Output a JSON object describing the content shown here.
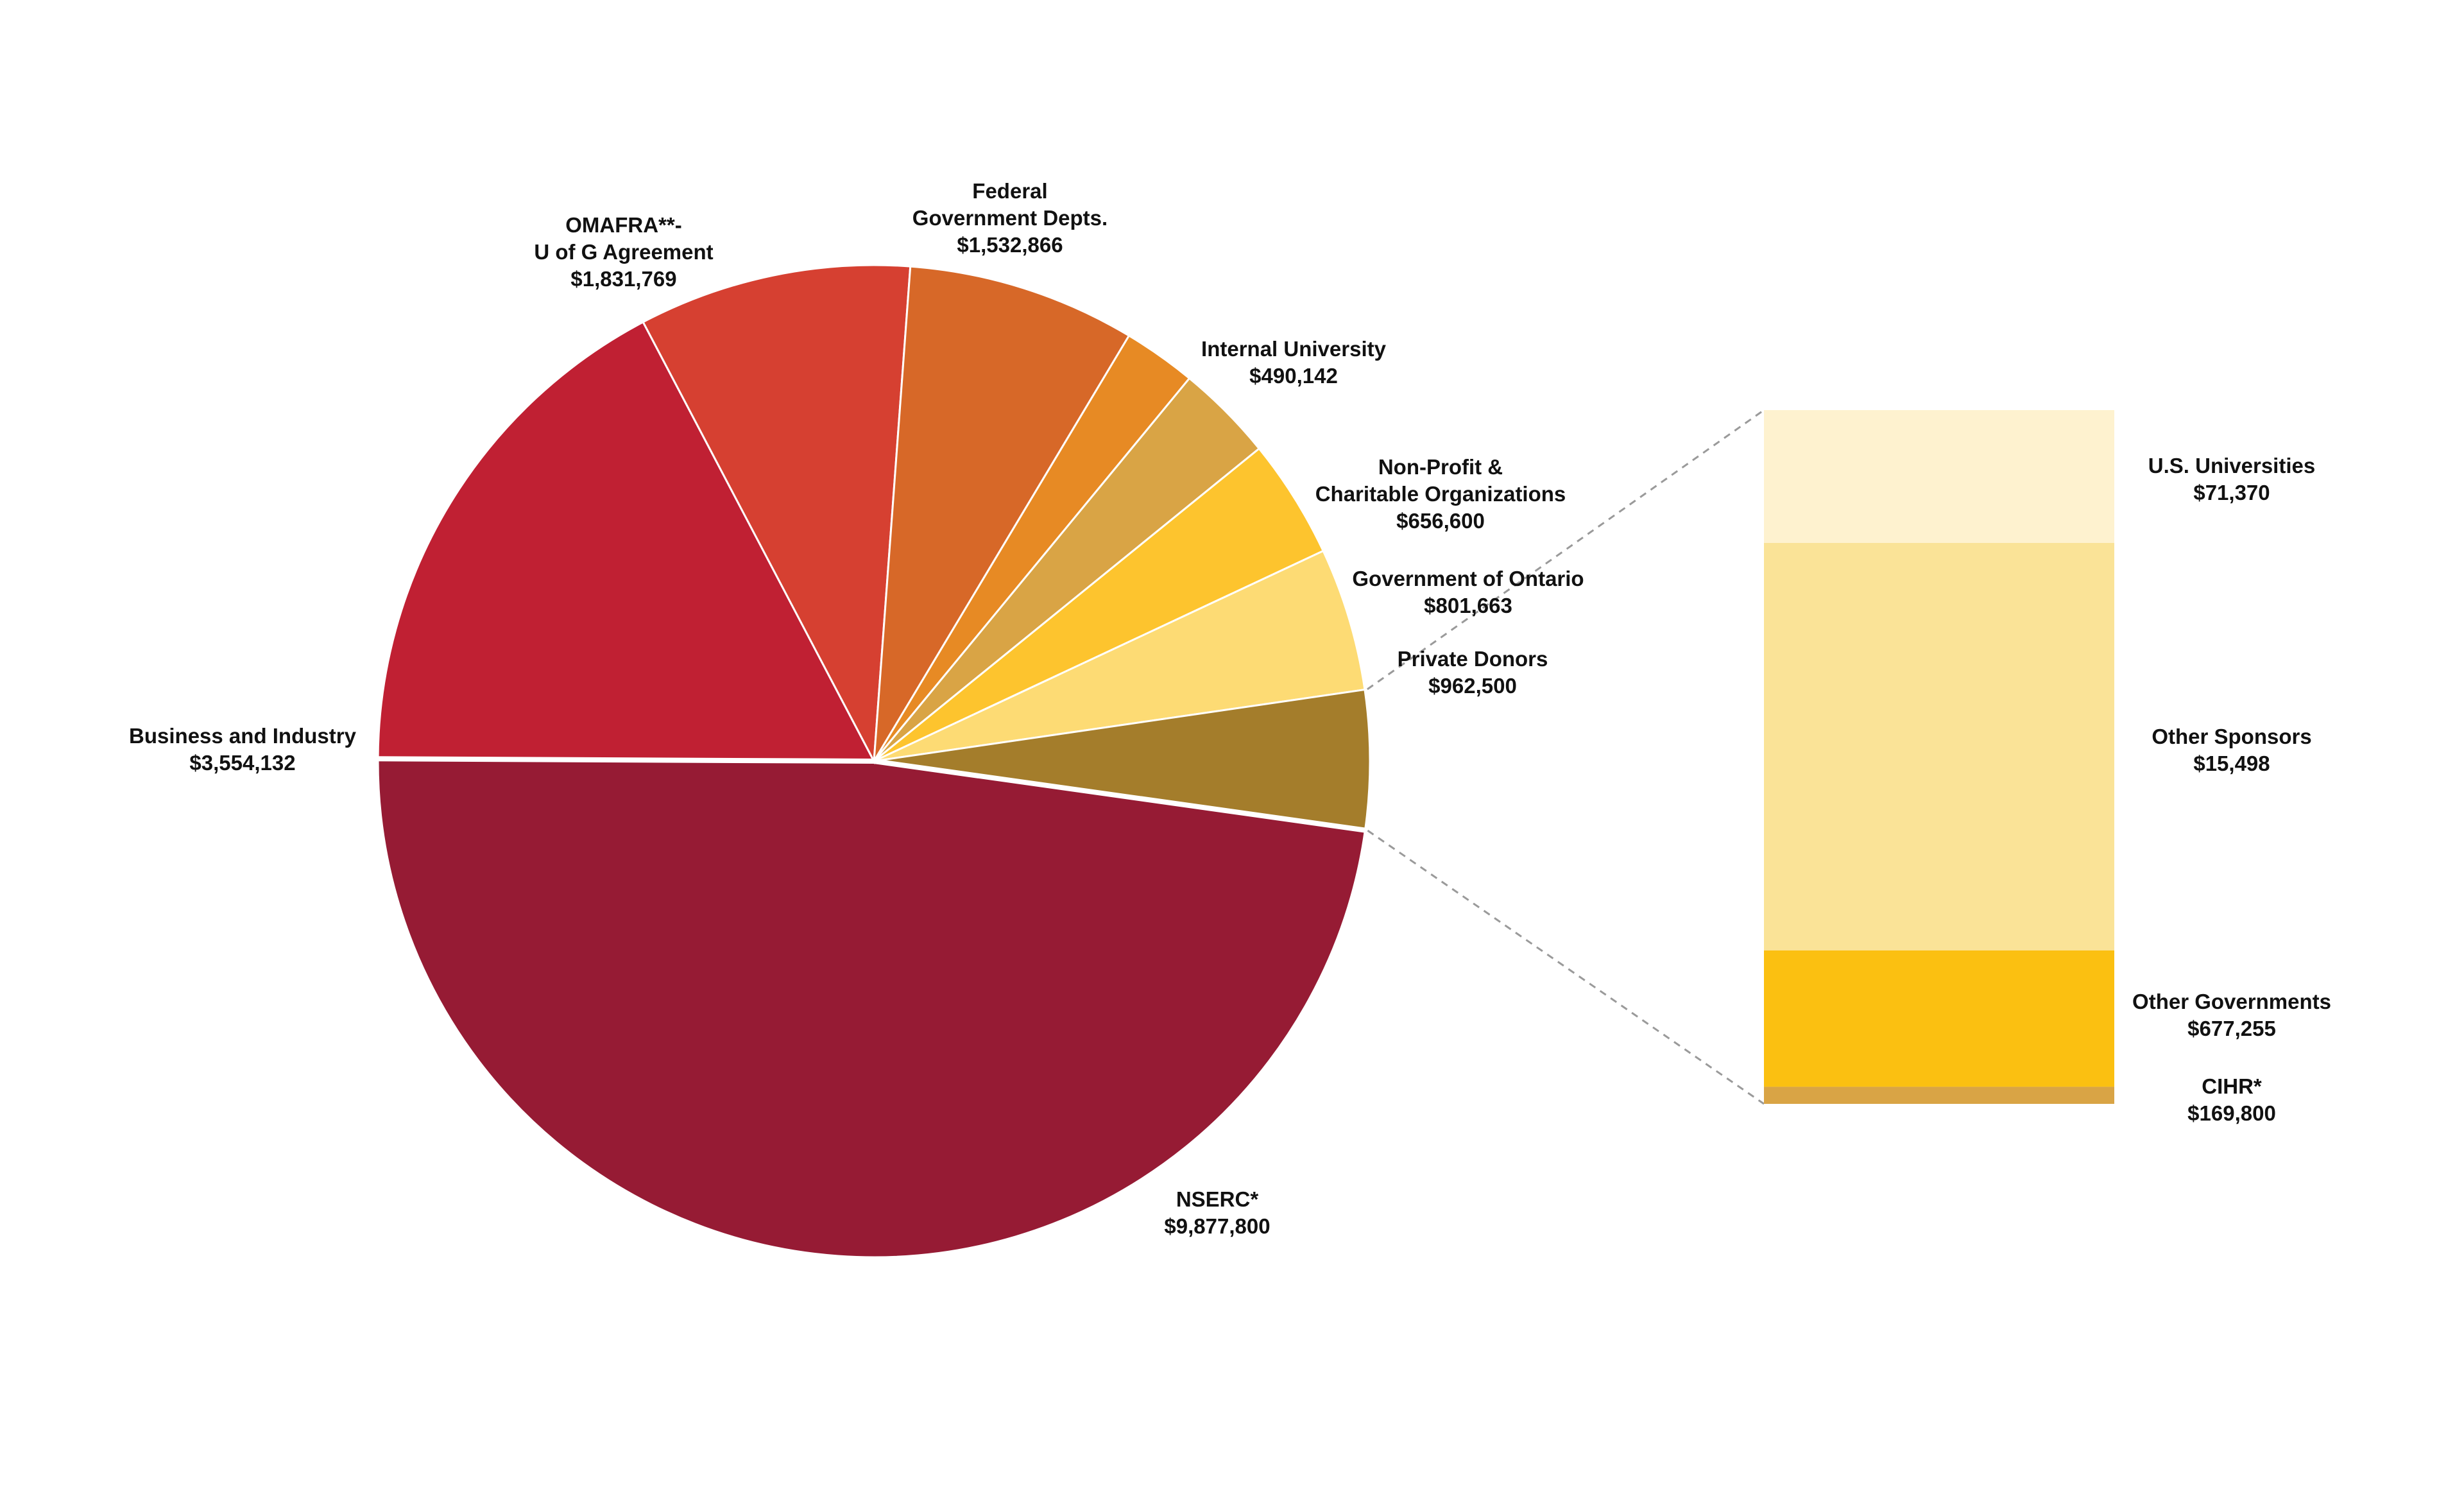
{
  "chart_data": {
    "type": "pie",
    "slices": [
      {
        "label_lines": [
          "NSERC*"
        ],
        "value_text": "$9,877,800",
        "value": 9877800,
        "color": "#961b34"
      },
      {
        "label_lines": [
          "Business and Industry"
        ],
        "value_text": "$3,554,132",
        "value": 3554132,
        "color": "#c02033"
      },
      {
        "label_lines": [
          "OMAFRA**-",
          "U of G Agreement"
        ],
        "value_text": "$1,831,769",
        "value": 1831769,
        "color": "#d64031"
      },
      {
        "label_lines": [
          "Federal",
          "Government Depts."
        ],
        "value_text": "$1,532,866",
        "value": 1532866,
        "color": "#d76828"
      },
      {
        "label_lines": [
          "Internal University"
        ],
        "value_text": "$490,142",
        "value": 490142,
        "color": "#e78a24"
      },
      {
        "label_lines": [
          "Non-Profit &",
          "Charitable Organizations"
        ],
        "value_text": "$656,600",
        "value": 656600,
        "color": "#d9a445"
      },
      {
        "label_lines": [
          "Government of Ontario"
        ],
        "value_text": "$801,663",
        "value": 801663,
        "color": "#fdc42e"
      },
      {
        "label_lines": [
          "Private Donors"
        ],
        "value_text": "$962,500",
        "value": 962500,
        "color": "#fddb74"
      },
      {
        "label_lines": [],
        "value_text": "",
        "value": 933923,
        "color": "#a47d2b",
        "is_other": true
      }
    ],
    "breakdown": {
      "segments": [
        {
          "label": "U.S. Universities",
          "value_text": "$71,370",
          "value": 71370,
          "color": "#fef2cf"
        },
        {
          "label": "Other Sponsors",
          "value_text": "$15,498",
          "value": 15498,
          "color": "#fae397"
        },
        {
          "label": "Other Governments",
          "value_text": "$677,255",
          "value": 677255,
          "color": "#fbc011"
        },
        {
          "label": "CIHR*",
          "value_text": "$169,800",
          "value": 169800,
          "color": "#d9a445"
        }
      ]
    }
  }
}
